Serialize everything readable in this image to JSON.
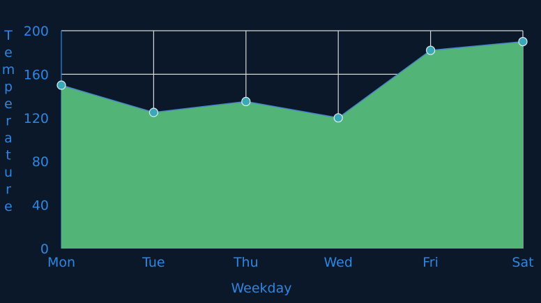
{
  "chart_data": {
    "type": "area",
    "title": "",
    "xlabel": "Weekday",
    "ylabel": "Temperature",
    "categories": [
      "Mon",
      "Tue",
      "Thu",
      "Wed",
      "Fri",
      "Sat"
    ],
    "series": [
      {
        "name": "Temperature",
        "values": [
          150,
          125,
          135,
          120,
          182,
          190
        ]
      }
    ],
    "ylim": [
      0,
      200
    ],
    "yticks": [
      0,
      40,
      80,
      120,
      160,
      200
    ],
    "grid": true,
    "colors": {
      "background": "#0b1829",
      "fill": "#52b477",
      "line": "#4a86c8",
      "marker": "#3aa8b8",
      "text": "#2f86e0",
      "grid": "#d8d8d8"
    }
  }
}
